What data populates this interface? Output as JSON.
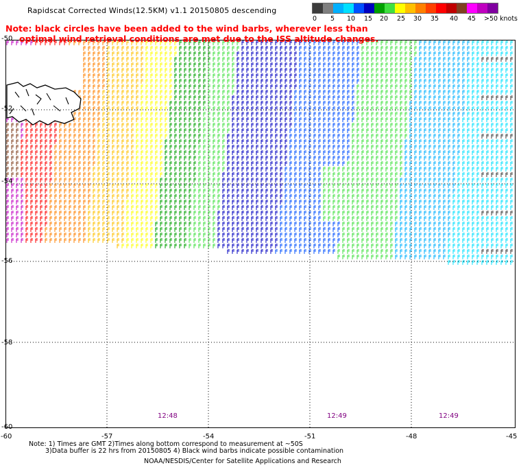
{
  "title": "Rapidscat Corrected Winds(12.5KM) v1.1 20150805 descending",
  "note": {
    "line1": "Note: black circles have been added to the wind barbs, wherever less than",
    "line2": "optimal wind retrieval conditions are met due to the ISS altitude changes.",
    "color": "#ff0000"
  },
  "scale": {
    "labels": [
      "0",
      "5",
      "10",
      "15",
      "20",
      "25",
      "30",
      "35",
      "40",
      "45",
      ">50",
      "knots"
    ],
    "colors": [
      "#3c3c3c",
      "#808080",
      "#00b0ff",
      "#00e0ff",
      "#0050ff",
      "#0000c0",
      "#00a000",
      "#40e040",
      "#ffff00",
      "#ffc000",
      "#ff8000",
      "#ff4000",
      "#ff0000",
      "#c00000",
      "#804020",
      "#ff00ff",
      "#c000c0",
      "#8000a0"
    ]
  },
  "axes": {
    "lat_labels": [
      "-50",
      "-52",
      "-54",
      "-56",
      "-58",
      "-60"
    ],
    "lon_labels": [
      "-60",
      "-57",
      "-54",
      "-51",
      "-48",
      "-45"
    ]
  },
  "time_labels": [
    "12:48",
    "12:49",
    "12:49"
  ],
  "footer": {
    "line1": "Note: 1) Times are GMT 2)Times along bottom correspond to measurement at ~50S",
    "line2": "3)Data buffer is 22 hrs from 20150805 4) Black wind barbs indicate possible contamination",
    "line3": "NOAA/NESDIS/Center for Satellite Applications and Research"
  }
}
